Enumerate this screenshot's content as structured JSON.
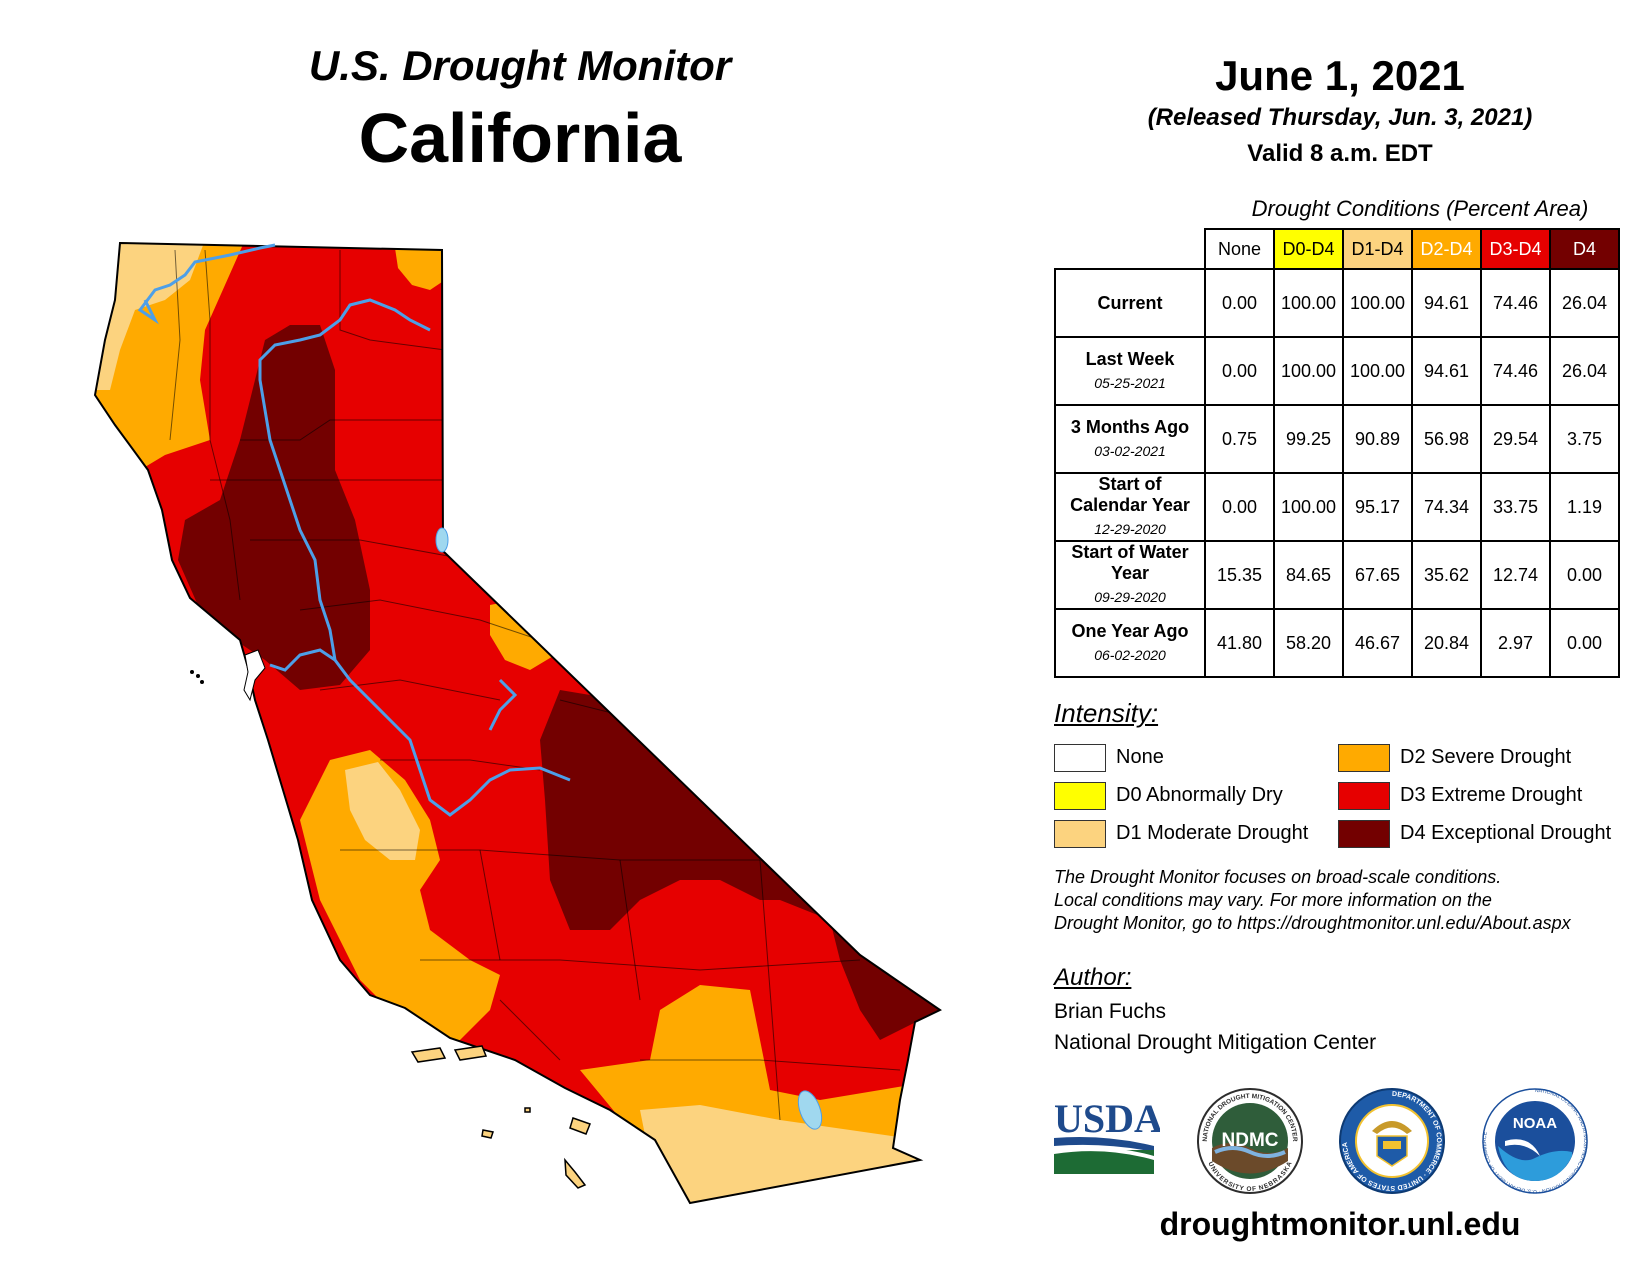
{
  "header": {
    "title_top": "U.S. Drought Monitor",
    "title_state": "California",
    "date": "June 1, 2021",
    "released": "(Released Thursday, Jun. 3, 2021)",
    "valid": "Valid 8 a.m. EDT"
  },
  "table": {
    "caption": "Drought Conditions (Percent Area)",
    "columns": [
      {
        "label": "None",
        "color": "#ffffff",
        "text_color": "#000000"
      },
      {
        "label": "D0-D4",
        "color": "#ffff00",
        "text_color": "#000000"
      },
      {
        "label": "D1-D4",
        "color": "#fcd37f",
        "text_color": "#000000"
      },
      {
        "label": "D2-D4",
        "color": "#ffaa00",
        "text_color": "#ffffff"
      },
      {
        "label": "D3-D4",
        "color": "#e60000",
        "text_color": "#ffffff"
      },
      {
        "label": "D4",
        "color": "#730000",
        "text_color": "#ffffff"
      }
    ],
    "rows": [
      {
        "label": "Current",
        "sub": "",
        "values": [
          "0.00",
          "100.00",
          "100.00",
          "94.61",
          "74.46",
          "26.04"
        ]
      },
      {
        "label": "Last Week",
        "sub": "05-25-2021",
        "values": [
          "0.00",
          "100.00",
          "100.00",
          "94.61",
          "74.46",
          "26.04"
        ]
      },
      {
        "label": "3 Months Ago",
        "sub": "03-02-2021",
        "values": [
          "0.75",
          "99.25",
          "90.89",
          "56.98",
          "29.54",
          "3.75"
        ]
      },
      {
        "label": "Start of Calendar Year",
        "sub": "12-29-2020",
        "values": [
          "0.00",
          "100.00",
          "95.17",
          "74.34",
          "33.75",
          "1.19"
        ]
      },
      {
        "label": "Start of Water Year",
        "sub": "09-29-2020",
        "values": [
          "15.35",
          "84.65",
          "67.65",
          "35.62",
          "12.74",
          "0.00"
        ]
      },
      {
        "label": "One Year Ago",
        "sub": "06-02-2020",
        "values": [
          "41.80",
          "58.20",
          "46.67",
          "20.84",
          "2.97",
          "0.00"
        ]
      }
    ]
  },
  "legend": {
    "title": "Intensity:",
    "items": [
      {
        "label": "None",
        "color": "#ffffff"
      },
      {
        "label": "D0 Abnormally Dry",
        "color": "#ffff00"
      },
      {
        "label": "D1 Moderate Drought",
        "color": "#fcd37f"
      },
      {
        "label": "D2 Severe Drought",
        "color": "#ffaa00"
      },
      {
        "label": "D3 Extreme Drought",
        "color": "#e60000"
      },
      {
        "label": "D4 Exceptional Drought",
        "color": "#730000"
      }
    ]
  },
  "disclaimer": {
    "line1": "The Drought Monitor focuses on broad-scale conditions.",
    "line2": "Local conditions may vary. For more information on the",
    "line3": "Drought Monitor, go to https://droughtmonitor.unl.edu/About.aspx"
  },
  "author": {
    "title": "Author:",
    "name": "Brian Fuchs",
    "org": "National Drought Mitigation Center"
  },
  "logos": {
    "usda": "USDA",
    "ndmc": "NDMC",
    "ndmc_ring_top": "NATIONAL DROUGHT MITIGATION CENTER",
    "ndmc_ring_bottom": "UNIVERSITY OF NEBRASKA",
    "commerce_ring": "DEPARTMENT OF COMMERCE · UNITED STATES OF AMERICA",
    "noaa": "NOAA",
    "noaa_ring": "NATIONAL OCEANIC AND ATMOSPHERIC ADMINISTRATION · U.S. DEPARTMENT OF COMMERCE"
  },
  "footer": {
    "website": "droughtmonitor.unl.edu"
  }
}
